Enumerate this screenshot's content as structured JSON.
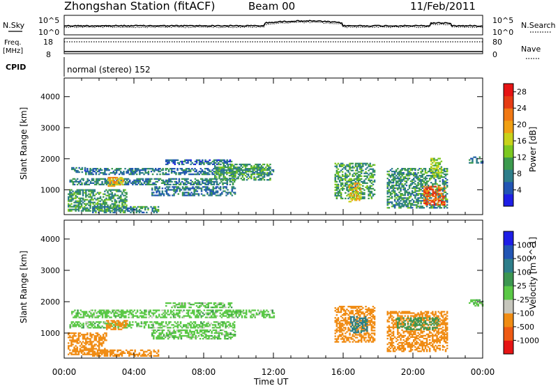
{
  "header": {
    "station": "Zhongshan Station (fitACF)",
    "beam": "Beam 00",
    "date": "11/Feb/2011"
  },
  "noise_panel": {
    "left_label": "N.Sky",
    "right_label": "N.Search",
    "y_top": "10^5",
    "y_bottom": "10^0"
  },
  "freq_panel": {
    "left_label_1": "Freq.",
    "left_label_2": "[MHz]",
    "left_tick_top": "18",
    "left_tick_bottom": "8",
    "right_label": "Nave",
    "right_tick_top": "80",
    "right_tick_bottom": "0"
  },
  "cpid_panel": {
    "label": "CPID",
    "mode": "normal (stereo) 152"
  },
  "colors": {
    "power": [
      "#1e1ee6",
      "#2255b4",
      "#2e7e8a",
      "#3c9a4e",
      "#7cc820",
      "#c8d21a",
      "#f0a014",
      "#f07814",
      "#e63c14",
      "#e61414"
    ],
    "velocity": [
      "#e61414",
      "#ee5a14",
      "#f08c14",
      "#c6c6bc",
      "#5ac846",
      "#3c9650",
      "#2e7e8a",
      "#2255b4",
      "#1e1ee6"
    ]
  },
  "chart_data": [
    {
      "type": "heatmap",
      "panel": "power",
      "ylabel": "Slant Range [km]",
      "y_ticks": [
        "1000",
        "2000",
        "3000",
        "4000"
      ],
      "ylim": [
        200,
        4600
      ],
      "x_ticks": [
        "00:00",
        "04:00",
        "08:00",
        "12:00",
        "16:00",
        "20:00",
        "00:00"
      ],
      "xlim": [
        0,
        24
      ],
      "colorbar": {
        "label": "Power [dB]",
        "ticks": [
          "4",
          "8",
          "12",
          "16",
          "20",
          "24",
          "28"
        ],
        "range": [
          0,
          30
        ]
      },
      "regions": [
        {
          "t0": 0.4,
          "t1": 1.2,
          "r0": 1550,
          "r1": 1720,
          "value": 6
        },
        {
          "t0": 1.2,
          "t1": 12.0,
          "r0": 1480,
          "r1": 1700,
          "value": 7
        },
        {
          "t0": 0.3,
          "t1": 9.8,
          "r0": 1150,
          "r1": 1350,
          "value": 8
        },
        {
          "t0": 0.2,
          "t1": 3.6,
          "r0": 300,
          "r1": 1000,
          "value": 10
        },
        {
          "t0": 2.5,
          "t1": 3.4,
          "r0": 1100,
          "r1": 1400,
          "value": 19
        },
        {
          "t0": 5.0,
          "t1": 9.8,
          "r0": 800,
          "r1": 1100,
          "value": 7
        },
        {
          "t0": 5.8,
          "t1": 9.6,
          "r0": 1800,
          "r1": 1950,
          "value": 6
        },
        {
          "t0": 8.6,
          "t1": 11.8,
          "r0": 1300,
          "r1": 1800,
          "value": 10
        },
        {
          "t0": 1.6,
          "t1": 5.4,
          "r0": 250,
          "r1": 450,
          "value": 9
        },
        {
          "t0": 15.5,
          "t1": 17.8,
          "r0": 700,
          "r1": 1850,
          "value": 10
        },
        {
          "t0": 16.3,
          "t1": 17.0,
          "r0": 600,
          "r1": 1200,
          "value": 18
        },
        {
          "t0": 18.5,
          "t1": 22.0,
          "r0": 400,
          "r1": 1700,
          "value": 9
        },
        {
          "t0": 20.6,
          "t1": 21.8,
          "r0": 500,
          "r1": 1100,
          "value": 24
        },
        {
          "t0": 21.0,
          "t1": 21.6,
          "r0": 1400,
          "r1": 2000,
          "value": 14
        },
        {
          "t0": 23.2,
          "t1": 24.0,
          "r0": 1850,
          "r1": 2050,
          "value": 6
        }
      ]
    },
    {
      "type": "heatmap",
      "panel": "velocity",
      "ylabel": "Slant Range [km]",
      "y_ticks": [
        "1000",
        "2000",
        "3000",
        "4000"
      ],
      "ylim": [
        200,
        4600
      ],
      "x_ticks": [
        "00:00",
        "04:00",
        "08:00",
        "12:00",
        "16:00",
        "20:00",
        "00:00"
      ],
      "xlim": [
        0,
        24
      ],
      "xlabel": "Time UT",
      "colorbar": {
        "label": "Velocity [m s^-1]",
        "ticks": [
          "-1000",
          "-500",
          "-100",
          "-25",
          "25",
          "100",
          "500",
          "1000"
        ]
      },
      "regions": [
        {
          "t0": 0.4,
          "t1": 12.0,
          "r0": 1480,
          "r1": 1720,
          "value": 0
        },
        {
          "t0": 0.3,
          "t1": 9.8,
          "r0": 1150,
          "r1": 1350,
          "value": 0
        },
        {
          "t0": 0.2,
          "t1": 2.4,
          "r0": 300,
          "r1": 1000,
          "value": -300
        },
        {
          "t0": 2.4,
          "t1": 3.6,
          "r0": 1100,
          "r1": 1400,
          "value": -300
        },
        {
          "t0": 5.0,
          "t1": 9.8,
          "r0": 800,
          "r1": 1100,
          "value": 0
        },
        {
          "t0": 5.8,
          "t1": 9.6,
          "r0": 1800,
          "r1": 1950,
          "value": 0
        },
        {
          "t0": 1.6,
          "t1": 5.4,
          "r0": 250,
          "r1": 450,
          "value": -150
        },
        {
          "t0": 15.5,
          "t1": 17.8,
          "r0": 700,
          "r1": 1850,
          "value": -150
        },
        {
          "t0": 16.4,
          "t1": 17.4,
          "r0": 1000,
          "r1": 1500,
          "value": 120
        },
        {
          "t0": 18.5,
          "t1": 22.0,
          "r0": 400,
          "r1": 1700,
          "value": -200
        },
        {
          "t0": 19.0,
          "t1": 21.5,
          "r0": 1100,
          "r1": 1500,
          "value": 60
        },
        {
          "t0": 23.2,
          "t1": 24.0,
          "r0": 1850,
          "r1": 2050,
          "value": 0
        }
      ]
    }
  ]
}
